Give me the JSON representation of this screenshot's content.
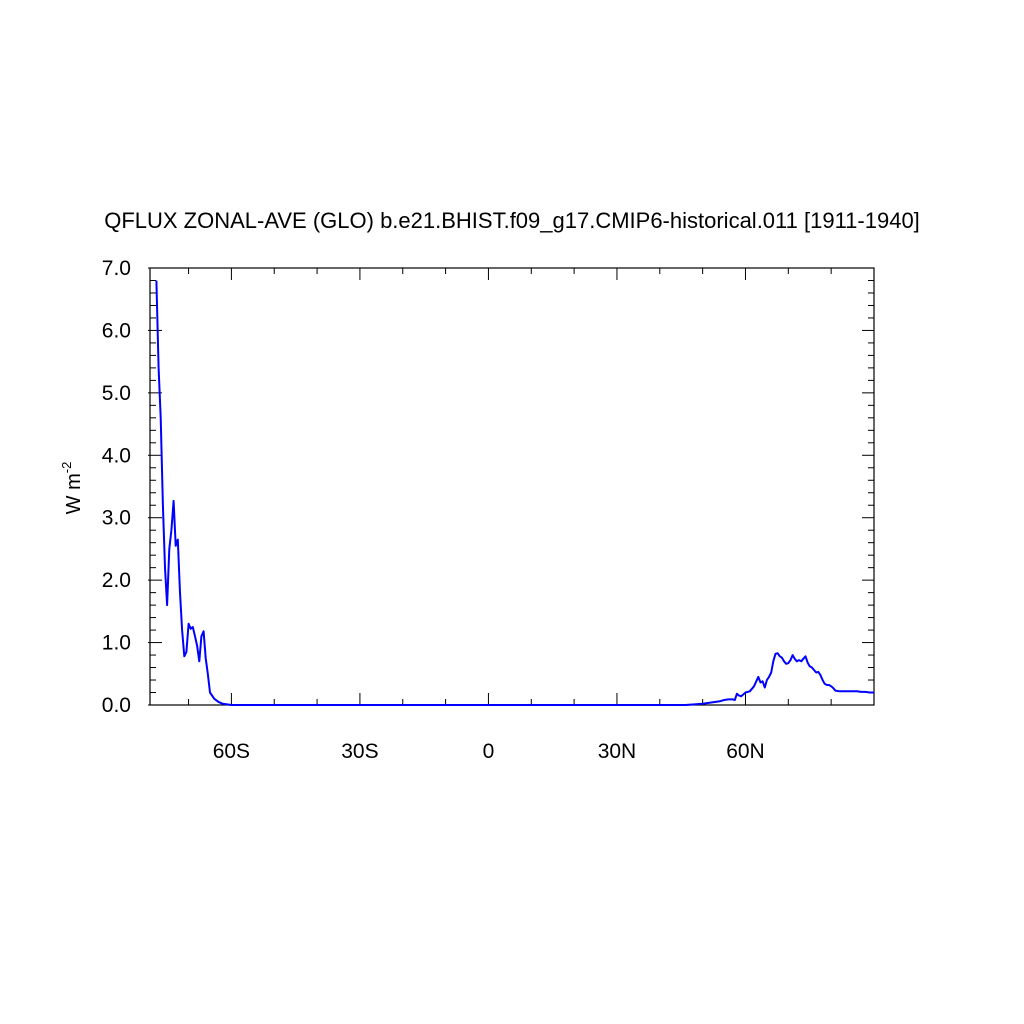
{
  "chart_data": {
    "type": "line",
    "title": "QFLUX ZONAL-AVE (GLO) b.e21.BHIST.f09_g17.CMIP6-historical.011 [1911-1940]",
    "ylabel": "W m",
    "ylabel_superscript": "-2",
    "xlim": [
      -79,
      90
    ],
    "ylim": [
      0,
      7
    ],
    "x_ticks": [
      {
        "value": -60,
        "label": "60S"
      },
      {
        "value": -30,
        "label": "30S"
      },
      {
        "value": 0,
        "label": "0"
      },
      {
        "value": 30,
        "label": "30N"
      },
      {
        "value": 60,
        "label": "60N"
      }
    ],
    "y_ticks": [
      {
        "value": 0,
        "label": "0.0"
      },
      {
        "value": 1,
        "label": "1.0"
      },
      {
        "value": 2,
        "label": "2.0"
      },
      {
        "value": 3,
        "label": "3.0"
      },
      {
        "value": 4,
        "label": "4.0"
      },
      {
        "value": 5,
        "label": "5.0"
      },
      {
        "value": 6,
        "label": "6.0"
      },
      {
        "value": 7,
        "label": "7.0"
      }
    ],
    "line_color": "#0000ff",
    "series": [
      {
        "x": [
          -77.5,
          -77,
          -76.5,
          -76,
          -75.5,
          -75,
          -74.5,
          -74,
          -73.5,
          -73,
          -72.5,
          -72,
          -71.5,
          -71,
          -70.5,
          -70,
          -69.5,
          -69,
          -68.5,
          -68,
          -67.5,
          -67,
          -66.5,
          -66,
          -65.5,
          -65,
          -64,
          -63,
          -62,
          -61,
          -60,
          -58,
          -55,
          -50,
          -40,
          -30,
          -20,
          -10,
          0,
          10,
          20,
          30,
          40,
          46,
          48,
          50,
          52,
          54,
          55,
          56,
          57,
          57.5,
          58,
          58.5,
          59,
          60,
          61,
          62,
          63,
          63.5,
          64,
          64.5,
          65,
          65.5,
          66,
          66.5,
          67,
          67.5,
          68,
          68.5,
          69,
          69.5,
          70,
          70.5,
          71,
          71.5,
          72,
          72.5,
          73,
          73.5,
          74,
          74.5,
          75,
          75.5,
          76,
          76.5,
          77,
          77.5,
          78,
          78.5,
          79,
          79.5,
          80,
          80.5,
          81,
          82,
          83,
          84,
          85,
          86,
          87,
          88,
          89,
          90
        ],
        "y": [
          6.8,
          5.4,
          4.6,
          3.2,
          2.2,
          1.6,
          2.5,
          2.8,
          3.27,
          2.55,
          2.65,
          1.8,
          1.2,
          0.78,
          0.85,
          1.3,
          1.22,
          1.25,
          1.1,
          0.95,
          0.7,
          1.1,
          1.18,
          0.75,
          0.5,
          0.2,
          0.1,
          0.05,
          0.02,
          0.01,
          0.0,
          0.0,
          0.0,
          0.0,
          0.0,
          0.0,
          0.0,
          0.0,
          0.0,
          0.0,
          0.0,
          0.0,
          0.0,
          0.0,
          0.01,
          0.02,
          0.04,
          0.06,
          0.08,
          0.09,
          0.09,
          0.08,
          0.18,
          0.15,
          0.14,
          0.2,
          0.22,
          0.3,
          0.45,
          0.36,
          0.38,
          0.28,
          0.4,
          0.45,
          0.52,
          0.7,
          0.82,
          0.83,
          0.78,
          0.76,
          0.7,
          0.66,
          0.67,
          0.72,
          0.8,
          0.74,
          0.7,
          0.72,
          0.7,
          0.74,
          0.78,
          0.68,
          0.62,
          0.6,
          0.56,
          0.52,
          0.53,
          0.48,
          0.4,
          0.34,
          0.32,
          0.32,
          0.3,
          0.27,
          0.23,
          0.22,
          0.22,
          0.22,
          0.22,
          0.22,
          0.21,
          0.21,
          0.2,
          0.2
        ]
      }
    ]
  }
}
